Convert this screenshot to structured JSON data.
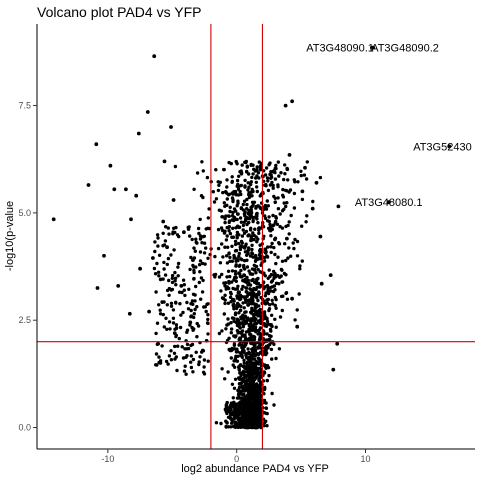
{
  "chart_data": {
    "type": "scatter",
    "title": "Volcano plot PAD4 vs YFP",
    "xlabel": "log2 abundance PAD4 vs YFP",
    "ylabel": "-log10(p-value",
    "xlim": [
      -15.5,
      18.5
    ],
    "ylim": [
      -0.5,
      9.4
    ],
    "x_ticks": [
      -10,
      0,
      10
    ],
    "x_tick_labels": [
      "-10",
      "0",
      "10"
    ],
    "y_ticks": [
      0,
      2.5,
      5,
      7.5
    ],
    "y_tick_labels": [
      "0.0",
      "2.5",
      "5.0",
      "7.5"
    ],
    "grid": false,
    "point_color": "#000000",
    "threshold_color": "#d40000",
    "threshold_lines": {
      "x": [
        -2,
        2
      ],
      "y": [
        2
      ]
    },
    "annotations": [
      {
        "label": "AT3G48090.1",
        "x": 10.5,
        "y": 8.85
      },
      {
        "label": "AT3G48090.2",
        "x": 10.6,
        "y": 8.85
      },
      {
        "label": "AT3G52430",
        "x": 16.5,
        "y": 6.55
      },
      {
        "label": "AT3G48080.1",
        "x": 11.8,
        "y": 5.25
      }
    ],
    "points": [
      [
        10.5,
        8.85
      ],
      [
        10.6,
        8.85
      ],
      [
        16.5,
        6.55
      ],
      [
        11.8,
        5.25
      ],
      [
        7.9,
        5.15
      ],
      [
        -14.2,
        4.85
      ],
      [
        -10.9,
        6.6
      ],
      [
        -6.4,
        8.65
      ],
      [
        -6.9,
        7.35
      ],
      [
        -5.1,
        7.0
      ],
      [
        -7.6,
        6.85
      ],
      [
        -5.6,
        6.2
      ],
      [
        -9.8,
        6.1
      ],
      [
        -11.5,
        5.65
      ],
      [
        -8.6,
        5.55
      ],
      [
        -9.5,
        5.55
      ],
      [
        -7.8,
        5.4
      ],
      [
        -10.3,
        4.0
      ],
      [
        -8.2,
        4.85
      ],
      [
        -10.8,
        3.25
      ],
      [
        -8.3,
        2.65
      ],
      [
        -7.5,
        3.7
      ],
      [
        -9.2,
        3.3
      ],
      [
        4.3,
        7.6
      ],
      [
        3.8,
        7.5
      ],
      [
        5.3,
        6.05
      ],
      [
        6.2,
        5.7
      ],
      [
        4.1,
        6.35
      ],
      [
        5.9,
        5.1
      ],
      [
        6.5,
        4.45
      ],
      [
        5.1,
        5.5
      ],
      [
        6.6,
        3.35
      ],
      [
        7.3,
        3.55
      ],
      [
        7.8,
        1.95
      ],
      [
        7.5,
        1.35
      ],
      [
        4.3,
        3.0
      ],
      [
        3.9,
        4.4
      ],
      [
        4.7,
        2.35
      ],
      [
        -4.8,
        2.2
      ],
      [
        -6.1,
        1.95
      ],
      [
        -4.9,
        5.3
      ],
      [
        -5.7,
        4.8
      ],
      [
        -4.1,
        4.55
      ],
      [
        -5.4,
        4.2
      ],
      [
        -6.5,
        3.95
      ],
      [
        -3.4,
        3.9
      ],
      [
        -5.9,
        3.45
      ],
      [
        -4.3,
        3.3
      ],
      [
        -6.8,
        2.7
      ],
      [
        -3.6,
        2.45
      ]
    ]
  }
}
